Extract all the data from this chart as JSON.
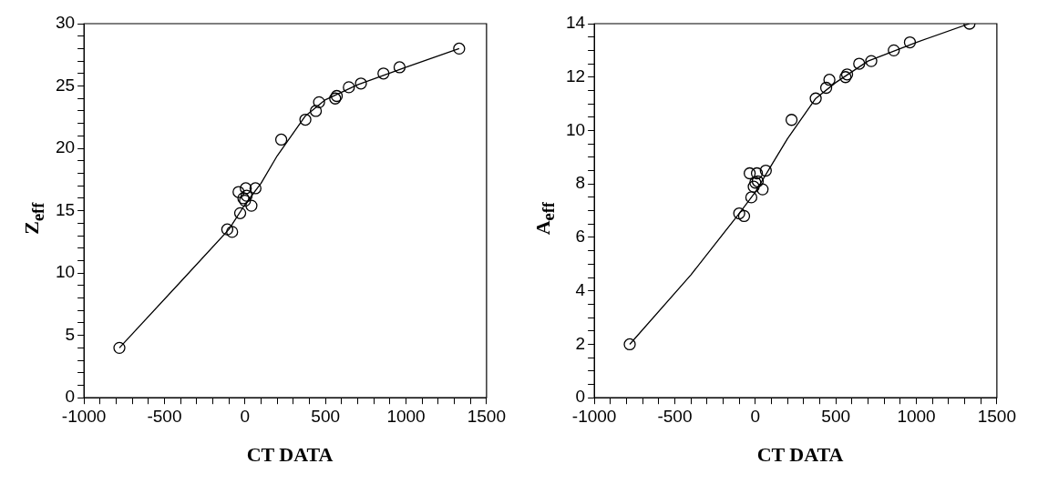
{
  "chart_data": [
    {
      "type": "scatter",
      "xlabel": "CT DATA",
      "ylabel": "Z$_{eff}$",
      "marker": "circle",
      "xlim": [
        -1000,
        1500
      ],
      "xticks": [
        -1000,
        {
          "value": -900,
          "label": null
        },
        {
          "value": -800,
          "label": null
        },
        {
          "value": -700,
          "label": null
        },
        {
          "value": -600,
          "label": null
        },
        -500,
        {
          "value": -400,
          "label": null
        },
        {
          "value": -300,
          "label": null
        },
        {
          "value": -200,
          "label": null
        },
        {
          "value": -100,
          "label": null
        },
        0,
        {
          "value": 100,
          "label": null
        },
        {
          "value": 200,
          "label": null
        },
        {
          "value": 300,
          "label": null
        },
        {
          "value": 400,
          "label": null
        },
        500,
        {
          "value": 600,
          "label": null
        },
        {
          "value": 700,
          "label": null
        },
        {
          "value": 800,
          "label": null
        },
        {
          "value": 900,
          "label": null
        },
        1000,
        {
          "value": 1100,
          "label": null
        },
        {
          "value": 1200,
          "label": null
        },
        {
          "value": 1300,
          "label": null
        },
        {
          "value": 1400,
          "label": null
        },
        1500
      ],
      "ylim": [
        0,
        30
      ],
      "yticks": [
        0,
        {
          "value": 1,
          "label": null
        },
        {
          "value": 2,
          "label": null
        },
        {
          "value": 3,
          "label": null
        },
        {
          "value": 4,
          "label": null
        },
        5,
        {
          "value": 6,
          "label": null
        },
        {
          "value": 7,
          "label": null
        },
        {
          "value": 8,
          "label": null
        },
        {
          "value": 9,
          "label": null
        },
        10,
        {
          "value": 11,
          "label": null
        },
        {
          "value": 12,
          "label": null
        },
        {
          "value": 13,
          "label": null
        },
        {
          "value": 14,
          "label": null
        },
        15,
        {
          "value": 16,
          "label": null
        },
        {
          "value": 17,
          "label": null
        },
        {
          "value": 18,
          "label": null
        },
        {
          "value": 19,
          "label": null
        },
        20,
        {
          "value": 21,
          "label": null
        },
        {
          "value": 22,
          "label": null
        },
        {
          "value": 23,
          "label": null
        },
        {
          "value": 24,
          "label": null
        },
        25,
        {
          "value": 26,
          "label": null
        },
        {
          "value": 27,
          "label": null
        },
        {
          "value": 28,
          "label": null
        },
        {
          "value": 29,
          "label": null
        },
        30
      ],
      "series": [
        {
          "color": "#000000",
          "x": [
            -780,
            -110,
            -80,
            -30,
            -40,
            5,
            -10,
            0,
            10,
            40,
            65,
            225,
            375,
            440,
            460,
            560,
            570,
            645,
            720,
            860,
            960,
            1330
          ],
          "values": [
            4,
            13.5,
            13.3,
            14.8,
            16.5,
            16.8,
            16,
            15.8,
            16.2,
            15.4,
            16.8,
            20.7,
            22.3,
            23,
            23.7,
            24,
            24.2,
            24.9,
            25.2,
            26,
            26.5,
            28
          ]
        },
        {
          "type": "line",
          "color": "#000000",
          "marker": "none",
          "x": [
            -780,
            -400,
            -100,
            0,
            100,
            200,
            375,
            500,
            700,
            1000,
            1330
          ],
          "values": [
            4,
            9.3,
            13.5,
            15.5,
            17.2,
            19.4,
            22.6,
            23.9,
            25.1,
            26.5,
            28
          ]
        }
      ]
    },
    {
      "type": "scatter",
      "xlabel": "CT DATA",
      "ylabel": "A$_{eff}$",
      "marker": "circle",
      "xlim": [
        -1000,
        1500
      ],
      "xticks": [
        -1000,
        {
          "value": -900,
          "label": null
        },
        {
          "value": -800,
          "label": null
        },
        {
          "value": -700,
          "label": null
        },
        {
          "value": -600,
          "label": null
        },
        -500,
        {
          "value": -400,
          "label": null
        },
        {
          "value": -300,
          "label": null
        },
        {
          "value": -200,
          "label": null
        },
        {
          "value": -100,
          "label": null
        },
        0,
        {
          "value": 100,
          "label": null
        },
        {
          "value": 200,
          "label": null
        },
        {
          "value": 300,
          "label": null
        },
        {
          "value": 400,
          "label": null
        },
        500,
        {
          "value": 600,
          "label": null
        },
        {
          "value": 700,
          "label": null
        },
        {
          "value": 800,
          "label": null
        },
        {
          "value": 900,
          "label": null
        },
        1000,
        {
          "value": 1100,
          "label": null
        },
        {
          "value": 1200,
          "label": null
        },
        {
          "value": 1300,
          "label": null
        },
        {
          "value": 1400,
          "label": null
        },
        1500
      ],
      "ylim": [
        0,
        14
      ],
      "yticks": [
        0,
        {
          "value": 0.5,
          "label": null
        },
        {
          "value": 1,
          "label": null
        },
        {
          "value": 1.5,
          "label": null
        },
        2,
        {
          "value": 2.5,
          "label": null
        },
        {
          "value": 3,
          "label": null
        },
        {
          "value": 3.5,
          "label": null
        },
        4,
        {
          "value": 4.5,
          "label": null
        },
        {
          "value": 5,
          "label": null
        },
        {
          "value": 5.5,
          "label": null
        },
        6,
        {
          "value": 6.5,
          "label": null
        },
        {
          "value": 7,
          "label": null
        },
        {
          "value": 7.5,
          "label": null
        },
        8,
        {
          "value": 8.5,
          "label": null
        },
        {
          "value": 9,
          "label": null
        },
        {
          "value": 9.5,
          "label": null
        },
        10,
        {
          "value": 10.5,
          "label": null
        },
        {
          "value": 11,
          "label": null
        },
        {
          "value": 11.5,
          "label": null
        },
        12,
        {
          "value": 12.5,
          "label": null
        },
        {
          "value": 13,
          "label": null
        },
        {
          "value": 13.5,
          "label": null
        },
        14
      ],
      "series": [
        {
          "color": "#000000",
          "x": [
            -780,
            -100,
            -70,
            -25,
            -35,
            10,
            0,
            -10,
            15,
            45,
            65,
            225,
            375,
            440,
            460,
            560,
            570,
            645,
            720,
            860,
            960,
            1330
          ],
          "values": [
            2,
            6.9,
            6.8,
            7.5,
            8.4,
            8.4,
            8.05,
            7.9,
            8.1,
            7.8,
            8.5,
            10.4,
            11.2,
            11.6,
            11.9,
            12,
            12.1,
            12.5,
            12.6,
            13,
            13.3,
            14
          ]
        },
        {
          "type": "line",
          "color": "#000000",
          "marker": "none",
          "x": [
            -780,
            -400,
            -100,
            0,
            100,
            200,
            375,
            500,
            700,
            1000,
            1330
          ],
          "values": [
            2,
            4.6,
            6.9,
            7.7,
            8.7,
            9.7,
            11.2,
            11.8,
            12.6,
            13.3,
            14
          ]
        }
      ]
    }
  ]
}
